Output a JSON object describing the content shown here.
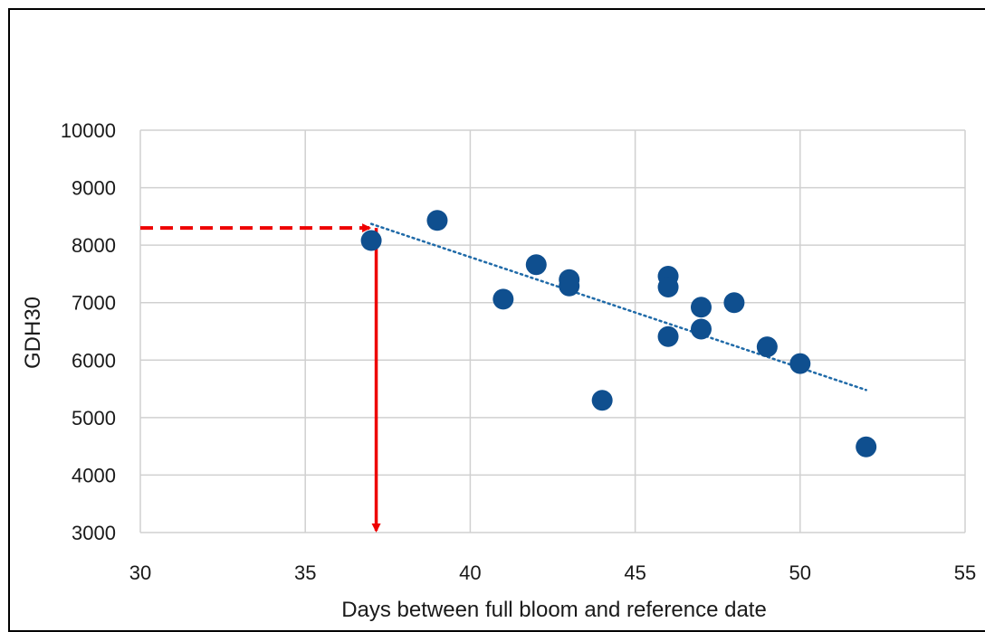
{
  "chart_data": {
    "type": "scatter",
    "title": "",
    "xlabel": "Days between full bloom and reference date",
    "ylabel": "GDH30",
    "xlim": [
      30,
      55
    ],
    "ylim": [
      3000,
      10000
    ],
    "x_ticks": [
      "30",
      "35",
      "40",
      "45",
      "50",
      "55"
    ],
    "y_ticks": [
      "3000",
      "4000",
      "5000",
      "6000",
      "7000",
      "8000",
      "9000",
      "10000"
    ],
    "grid": true,
    "legend": "none",
    "series": [
      {
        "points": [
          {
            "x": 37,
            "y": 8080
          },
          {
            "x": 39,
            "y": 8430
          },
          {
            "x": 41,
            "y": 7060
          },
          {
            "x": 42,
            "y": 7660
          },
          {
            "x": 43,
            "y": 7400
          },
          {
            "x": 43,
            "y": 7290
          },
          {
            "x": 44,
            "y": 5300
          },
          {
            "x": 46,
            "y": 7460
          },
          {
            "x": 46,
            "y": 7270
          },
          {
            "x": 46,
            "y": 6410
          },
          {
            "x": 47,
            "y": 6920
          },
          {
            "x": 47,
            "y": 6540
          },
          {
            "x": 48,
            "y": 7000
          },
          {
            "x": 49,
            "y": 6230
          },
          {
            "x": 50,
            "y": 5940
          },
          {
            "x": 52,
            "y": 4490
          }
        ],
        "color": "#0f4f8f"
      }
    ],
    "trendline": {
      "x_start": 37,
      "y_start": 8370,
      "x_end": 52,
      "y_end": 5480,
      "style": "dotted",
      "color": "#1f6aa8"
    },
    "annotations": {
      "horizontal_arrow": {
        "x_from": 30,
        "x_to": 37,
        "y": 8300,
        "style": "dashed",
        "color": "#ee0000"
      },
      "vertical_arrow": {
        "x": 37.15,
        "y_from": 8300,
        "y_to": 3000,
        "style": "solid",
        "color": "#ee0000"
      }
    }
  }
}
